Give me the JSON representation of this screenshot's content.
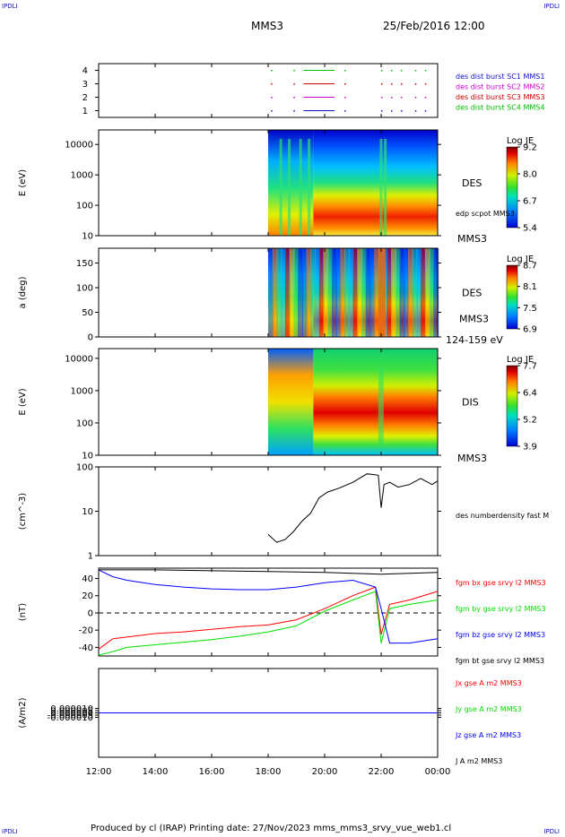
{
  "header": {
    "corner_label": "IPDLI",
    "spacecraft": "MMS3",
    "datetime": "25/Feb/2016 12:00"
  },
  "footer": {
    "text": "Produced by cl (IRAP)   Printing date: 27/Nov/2023   mms_mms3_srvy_vue_web1.cl"
  },
  "colors": {
    "mms1": "#1010c8",
    "mms2": "#d000d0",
    "mms3": "#d00000",
    "mms4": "#00c000",
    "red": "#ff0000",
    "green": "#00e000",
    "blue": "#0000ff",
    "black": "#000000"
  },
  "chart_data": [
    {
      "type": "scatter",
      "id": "burst",
      "ylim": [
        0.5,
        4.5
      ],
      "yticks": [
        "1",
        "2",
        "3",
        "4"
      ],
      "legend": [
        {
          "label": "des dist burst SC1 MMS1",
          "color": "#1010c8"
        },
        {
          "label": "des dist burst SC2 MMS2",
          "color": "#d000d0"
        },
        {
          "label": "des dist burst SC3 MMS3",
          "color": "#d00000"
        },
        {
          "label": "des dist burst SC4 MMS4",
          "color": "#00c000"
        }
      ]
    },
    {
      "type": "heatmap",
      "id": "des-energy",
      "ylabel": "E (eV)",
      "yscale": "log",
      "ylim": [
        10,
        30000
      ],
      "yticks": [
        "10",
        "100",
        "1000",
        "10000"
      ],
      "right_label": "DES",
      "sub_label": "edp scpot MMS3",
      "bottom_label": "MMS3",
      "colorbar": {
        "title": "Log JE",
        "ticks": [
          "9.2",
          "8.0",
          "6.7",
          "5.4"
        ]
      }
    },
    {
      "type": "heatmap",
      "id": "des-pitch",
      "ylabel": "a (deg)",
      "ylim": [
        0,
        180
      ],
      "yticks": [
        "0",
        "50",
        "100",
        "150"
      ],
      "right_label": "DES",
      "sub_label": "MMS3",
      "bottom_label": "124-159 eV",
      "colorbar": {
        "title": "Log JE",
        "ticks": [
          "8.7",
          "8.1",
          "7.5",
          "6.9"
        ]
      }
    },
    {
      "type": "heatmap",
      "id": "dis-energy",
      "ylabel": "E (eV)",
      "yscale": "log",
      "ylim": [
        10,
        20000
      ],
      "yticks": [
        "10",
        "100",
        "1000",
        "10000"
      ],
      "right_label": "DIS",
      "bottom_label": "MMS3",
      "colorbar": {
        "title": "Log JE",
        "ticks": [
          "7.7",
          "6.4",
          "5.2",
          "3.9"
        ]
      }
    },
    {
      "type": "line",
      "id": "density",
      "ylabel": "(cm^-3)",
      "yscale": "log",
      "ylim": [
        1,
        100
      ],
      "yticks": [
        "1",
        "10",
        "100"
      ],
      "legend": [
        {
          "label": "des numberdensity fast M",
          "color": "#000000"
        }
      ],
      "series": [
        {
          "name": "des numberdensity fast M",
          "x": [
            18.0,
            18.3,
            18.6,
            18.9,
            19.2,
            19.5,
            19.8,
            20.1,
            20.5,
            21.0,
            21.5,
            21.9,
            22.0,
            22.1,
            22.3,
            22.6,
            23.0,
            23.4,
            23.8,
            24.0
          ],
          "values": [
            3.0,
            2.0,
            2.3,
            3.5,
            6.0,
            9.0,
            20.0,
            27.0,
            33.0,
            45.0,
            70.0,
            65.0,
            12.0,
            40.0,
            45.0,
            35.0,
            40.0,
            55.0,
            40.0,
            48.0
          ]
        }
      ]
    },
    {
      "type": "line",
      "id": "magnetic-field",
      "ylabel": "(nT)",
      "ylim": [
        -50,
        52
      ],
      "yticks": [
        "-40",
        "-20",
        "0",
        "20",
        "40"
      ],
      "legend": [
        {
          "label": "fgm bx gse srvy l2 MMS3",
          "color": "#ff0000"
        },
        {
          "label": "fgm by gse srvy l2 MMS3",
          "color": "#00e000"
        },
        {
          "label": "fgm bz gse srvy l2 MMS3",
          "color": "#0000ff"
        },
        {
          "label": "fgm bt gse srvy l2 MMS3",
          "color": "#000000"
        }
      ],
      "series": [
        {
          "name": "fgm bx gse srvy l2 MMS3",
          "x": [
            12.0,
            12.5,
            13.0,
            14.0,
            15.0,
            16.0,
            17.0,
            18.0,
            19.0,
            20.0,
            21.0,
            21.8,
            22.0,
            22.3,
            23.0,
            24.0
          ],
          "values": [
            -42.0,
            -30.0,
            -28.0,
            -24.0,
            -22.0,
            -19.0,
            -16.0,
            -14.0,
            -8.0,
            5.0,
            20.0,
            30.0,
            -25.0,
            10.0,
            15.0,
            25.0
          ]
        },
        {
          "name": "fgm by gse srvy l2 MMS3",
          "x": [
            12.0,
            12.5,
            13.0,
            14.0,
            15.0,
            16.0,
            17.0,
            18.0,
            19.0,
            20.0,
            21.0,
            21.8,
            22.0,
            22.3,
            23.0,
            24.0
          ],
          "values": [
            -49.0,
            -45.0,
            -40.0,
            -37.0,
            -34.0,
            -31.0,
            -27.0,
            -22.0,
            -15.0,
            2.0,
            15.0,
            25.0,
            -35.0,
            5.0,
            10.0,
            15.0
          ]
        },
        {
          "name": "fgm bz gse srvy l2 MMS3",
          "x": [
            12.0,
            12.5,
            13.0,
            14.0,
            15.0,
            16.0,
            17.0,
            18.0,
            19.0,
            20.0,
            21.0,
            21.8,
            22.0,
            22.3,
            23.0,
            24.0
          ],
          "values": [
            50.0,
            42.0,
            38.0,
            33.0,
            30.0,
            28.0,
            27.0,
            27.0,
            30.0,
            35.0,
            38.0,
            30.0,
            5.0,
            -35.0,
            -35.0,
            -30.0
          ]
        },
        {
          "name": "fgm bt gse srvy l2 MMS3",
          "x": [
            12.0,
            14.0,
            16.0,
            18.0,
            20.0,
            22.0,
            23.0,
            24.0
          ],
          "values": [
            50.0,
            50.0,
            49.0,
            48.0,
            47.0,
            45.0,
            46.0,
            47.0
          ]
        }
      ]
    },
    {
      "type": "line",
      "id": "current",
      "ylabel": "(A/m2)",
      "ylim": [
        -0.0001,
        0.0001
      ],
      "yticks": [
        "-0.000010",
        "-0.000005",
        "0.000000",
        "0.000005",
        "0.000010"
      ],
      "legend": [
        {
          "label": "Jx gse A m2 MMS3",
          "color": "#ff0000"
        },
        {
          "label": "Jy gse A m2 MMS3",
          "color": "#00e000"
        },
        {
          "label": "Jz gse A m2 MMS3",
          "color": "#0000ff"
        },
        {
          "label": "J A m2 MMS3",
          "color": "#000000"
        }
      ],
      "series": [
        {
          "name": "Jz gse A m2 MMS3",
          "x": [
            12.0,
            24.0
          ],
          "values": [
            0.0,
            0.0
          ]
        }
      ]
    }
  ],
  "time_axis": {
    "range": [
      12,
      24
    ],
    "ticks": [
      "12:00",
      "14:00",
      "16:00",
      "18:00",
      "20:00",
      "22:00",
      "00:00"
    ]
  }
}
